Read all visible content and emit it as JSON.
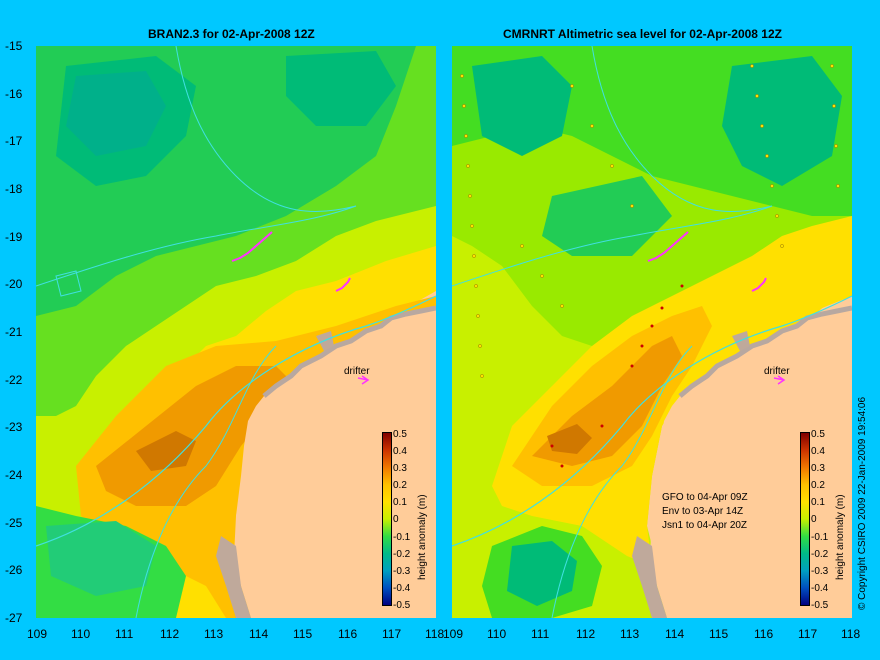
{
  "left_panel": {
    "title": "BRAN2.3 for 02-Apr-2008 12Z",
    "drifter_label": "drifter",
    "colorbar_label": "height anomaly (m)"
  },
  "right_panel": {
    "title": "CMRNRT Altimetric sea level  for 02-Apr-2008 12Z",
    "drifter_label": "drifter",
    "colorbar_label": "height anomaly (m)",
    "info_lines": [
      "GFO to 04-Apr 09Z",
      "Env to 03-Apr 14Z",
      "Jsn1 to 04-Apr 20Z"
    ]
  },
  "y_ticks": [
    "-15",
    "-16",
    "-17",
    "-18",
    "-19",
    "-20",
    "-21",
    "-22",
    "-23",
    "-24",
    "-25",
    "-26",
    "-27"
  ],
  "x_ticks": [
    "109",
    "110",
    "111",
    "112",
    "113",
    "114",
    "115",
    "116",
    "117",
    "118"
  ],
  "colorbar_ticks": [
    "0.5",
    "0.4",
    "0.3",
    "0.2",
    "0.1",
    "0",
    "-0.1",
    "-0.2",
    "-0.3",
    "-0.4",
    "-0.5"
  ],
  "copyright": "© Copyright CSIRO 2009   22-Jan-2009 19:54:06",
  "colors": {
    "background": "#00c8ff",
    "land": "#ffcc99",
    "coastline": "#40e0e0",
    "drifter_track": "#ff33ff"
  }
}
